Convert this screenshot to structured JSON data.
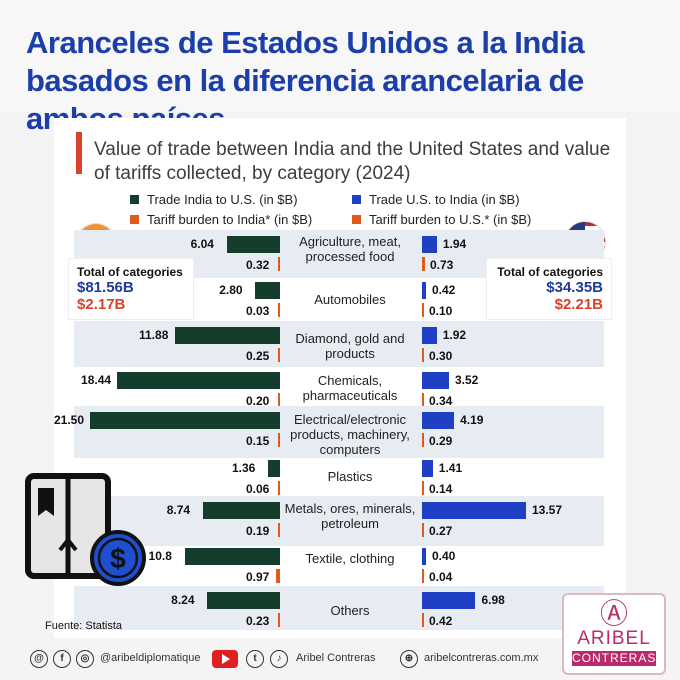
{
  "header": {
    "title": "Aranceles de Estados Unidos a la India basados en la diferencia arancelaria de ambos países"
  },
  "chart_data": {
    "type": "bar",
    "title": "Value of trade between India and the United States and value of tariffs collected, by category (2024)",
    "categories": [
      "Agriculture, meat, processed food",
      "Automobiles",
      "Diamond, gold and products",
      "Chemicals, pharmaceuticals",
      "Electrical/electronic products, machinery, computers",
      "Plastics",
      "Metals, ores, minerals, petroleum",
      "Textile, clothing",
      "Others"
    ],
    "category_display": [
      "6.04",
      "2.80",
      "11.88",
      "18.44",
      "21.50",
      "1.36",
      "8.74",
      "10.8",
      "8.24"
    ],
    "series": [
      {
        "name": "Trade India to U.S. (in $B)",
        "values": [
          6.04,
          2.8,
          11.88,
          18.44,
          21.5,
          1.36,
          8.74,
          10.8,
          8.24
        ],
        "labels": [
          "6.04",
          "2.80",
          "11.88",
          "18.44",
          "21.50",
          "1.36",
          "8.74",
          "10.8",
          "8.24"
        ]
      },
      {
        "name": "Tariff burden to India* (in $B)",
        "values": [
          0.32,
          0.03,
          0.25,
          0.2,
          0.15,
          0.06,
          0.19,
          0.97,
          0.23
        ],
        "labels": [
          "0.32",
          "0.03",
          "0.25",
          "0.20",
          "0.15",
          "0.06",
          "0.19",
          "0.97",
          "0.23"
        ]
      },
      {
        "name": "Trade U.S. to India (in $B)",
        "values": [
          1.94,
          0.42,
          1.92,
          3.52,
          4.19,
          1.41,
          13.57,
          0.4,
          6.98
        ],
        "labels": [
          "1.94",
          "0.42",
          "1.92",
          "3.52",
          "4.19",
          "1.41",
          "13.57",
          "0.40",
          "6.98"
        ]
      },
      {
        "name": "Tariff burden to U.S.* (in $B)",
        "values": [
          0.73,
          0.1,
          0.3,
          0.34,
          0.29,
          0.14,
          0.27,
          0.04,
          0.42
        ],
        "labels": [
          "0.73",
          "0.10",
          "0.30",
          "0.34",
          "0.29",
          "0.14",
          "0.27",
          "0.04",
          "0.42"
        ]
      }
    ],
    "colors": {
      "trade_india": "#153d2c",
      "tariff_india": "#e05a1c",
      "trade_us": "#1f3fc4",
      "tariff_us": "#e05a1c"
    },
    "legend_position": "top",
    "grid": false
  },
  "totals": {
    "india": {
      "label": "Total of  categories",
      "trade": "$81.56B",
      "tariff": "$2.17B"
    },
    "us": {
      "label": "Total of  categories",
      "trade": "$34.35B",
      "tariff": "$2.21B"
    }
  },
  "source": "Fuente: Statista",
  "footer": {
    "handle": "@aribeldiplomatique",
    "name": "Aribel Contreras",
    "site": "aribelcontreras.com.mx"
  },
  "logo": {
    "line1": "ARIBEL",
    "line2": "CONTRERAS"
  }
}
